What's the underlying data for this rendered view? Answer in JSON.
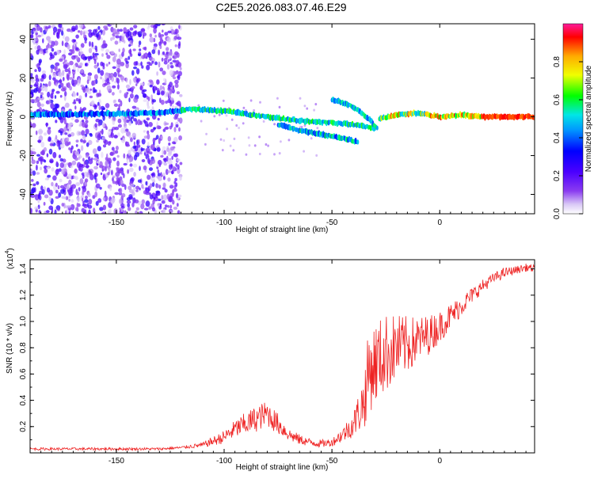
{
  "title": "C2E5.2026.083.07.46.E29",
  "chart_data": [
    {
      "type": "heatmap",
      "title": "C2E5.2026.083.07.46.E29",
      "xlabel": "Height of straight line (km)",
      "ylabel": "Frequency (Hz)",
      "xlim": [
        -190,
        44
      ],
      "ylim": [
        -50,
        48
      ],
      "xticks": [
        -150,
        -100,
        -50,
        0
      ],
      "xtick_labels": [
        "-150",
        "-100",
        "-50",
        "0"
      ],
      "yticks": [
        -40,
        -20,
        0,
        20,
        40
      ],
      "ytick_labels": [
        "-40",
        "-20",
        "0",
        "20",
        "40"
      ],
      "colorbar": {
        "label": "Normalized spectral amplitude",
        "range": [
          0,
          1
        ],
        "ticks": [
          0.0,
          0.2,
          0.4,
          0.6,
          0.8
        ],
        "tick_labels": [
          "0.0",
          "0.2",
          "0.4",
          "0.6",
          "0.8"
        ]
      },
      "noise_region_x": [
        -190,
        -120
      ],
      "ridges": [
        {
          "name": "main-ridge",
          "points": [
            [
              -190,
              1
            ],
            [
              -130,
              2
            ],
            [
              -115,
              4
            ],
            [
              -100,
              3
            ],
            [
              -80,
              0
            ],
            [
              -65,
              -2
            ],
            [
              -50,
              -3
            ],
            [
              -40,
              -4
            ],
            [
              -30,
              -6
            ]
          ]
        },
        {
          "name": "lower-branch",
          "points": [
            [
              -75,
              -4
            ],
            [
              -65,
              -7
            ],
            [
              -55,
              -9
            ],
            [
              -45,
              -11
            ],
            [
              -38,
              -13
            ]
          ]
        },
        {
          "name": "upper-branch",
          "points": [
            [
              -50,
              9
            ],
            [
              -42,
              6
            ],
            [
              -36,
              2
            ],
            [
              -32,
              -2
            ],
            [
              -29,
              -6
            ]
          ]
        },
        {
          "name": "recovered-ridge",
          "points": [
            [
              -28,
              -1
            ],
            [
              -20,
              1
            ],
            [
              -10,
              2
            ],
            [
              0,
              0
            ],
            [
              10,
              1
            ],
            [
              20,
              0
            ],
            [
              44,
              0
            ]
          ]
        }
      ]
    },
    {
      "type": "line",
      "xlabel": "Height of straight line (km)",
      "ylabel": "SNR (10 * v/v)",
      "scale_label": "(x10",
      "scale_exponent": "4",
      "xlim": [
        -190,
        44
      ],
      "ylim": [
        0,
        1.47
      ],
      "xticks": [
        -150,
        -100,
        -50,
        0
      ],
      "xtick_labels": [
        "-150",
        "-100",
        "-50",
        "0"
      ],
      "yticks": [
        0.2,
        0.4,
        0.6,
        0.8,
        1.0,
        1.2,
        1.4
      ],
      "ytick_labels": [
        "0.2",
        "0.4",
        "0.6",
        "0.8",
        "1.0",
        "1.2",
        "1.4"
      ],
      "series": [
        {
          "name": "SNR",
          "color": "#ee2222",
          "x": [
            -190,
            -170,
            -150,
            -130,
            -120,
            -110,
            -100,
            -95,
            -90,
            -85,
            -80,
            -75,
            -70,
            -65,
            -60,
            -55,
            -50,
            -45,
            -40,
            -35,
            -33,
            -30,
            -25,
            -20,
            -15,
            -10,
            -5,
            0,
            5,
            10,
            15,
            20,
            25,
            30,
            35,
            40,
            44
          ],
          "y": [
            0.03,
            0.03,
            0.03,
            0.03,
            0.04,
            0.06,
            0.12,
            0.18,
            0.22,
            0.26,
            0.3,
            0.22,
            0.14,
            0.1,
            0.08,
            0.07,
            0.08,
            0.14,
            0.22,
            0.4,
            0.62,
            0.68,
            0.76,
            0.8,
            0.82,
            0.86,
            0.9,
            0.96,
            1.04,
            1.12,
            1.2,
            1.27,
            1.33,
            1.37,
            1.39,
            1.41,
            1.4
          ],
          "noise": [
            0.01,
            0.01,
            0.01,
            0.01,
            0.01,
            0.02,
            0.05,
            0.07,
            0.09,
            0.1,
            0.1,
            0.08,
            0.05,
            0.04,
            0.03,
            0.03,
            0.03,
            0.06,
            0.1,
            0.22,
            0.32,
            0.32,
            0.3,
            0.26,
            0.22,
            0.18,
            0.15,
            0.12,
            0.1,
            0.08,
            0.06,
            0.05,
            0.04,
            0.04,
            0.03,
            0.03,
            0.03
          ]
        }
      ]
    }
  ]
}
